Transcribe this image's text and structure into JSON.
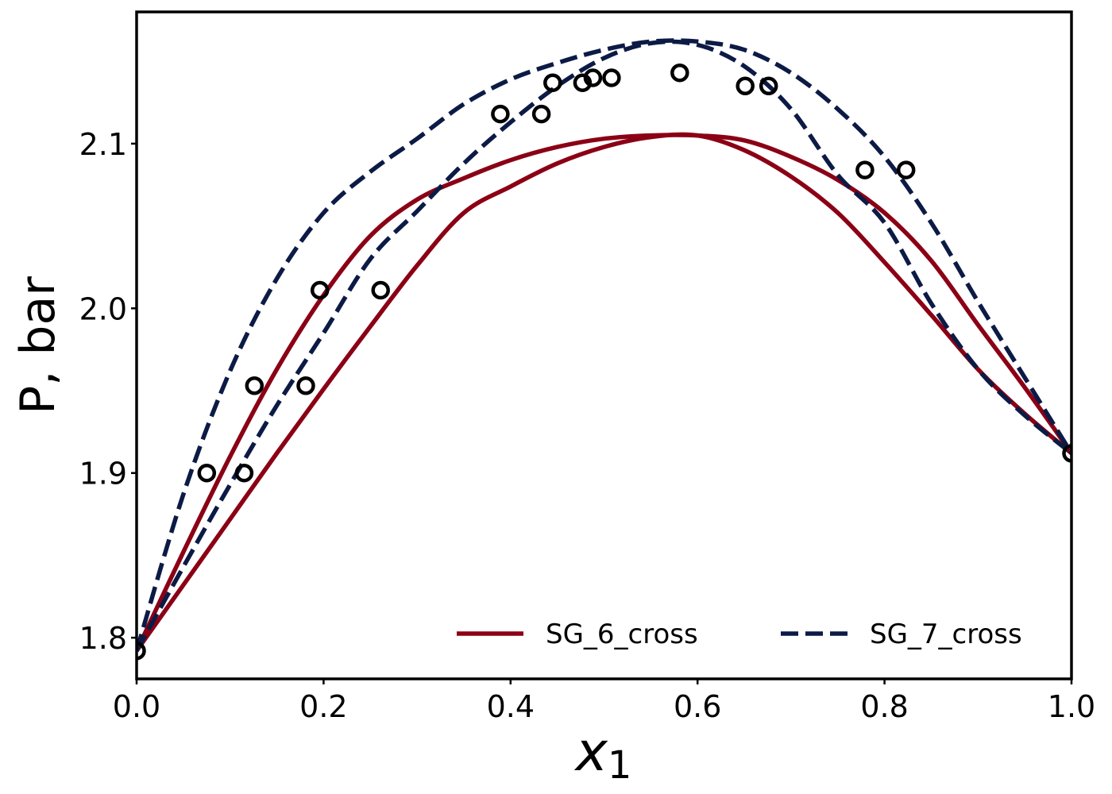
{
  "chart_data": {
    "type": "line",
    "title": "",
    "xlabel": "x",
    "xlabel_subscript": "1",
    "ylabel": "P, bar",
    "xlim": [
      0.0,
      1.0
    ],
    "ylim": [
      1.775,
      2.18
    ],
    "xticks": [
      0.0,
      0.2,
      0.4,
      0.6,
      0.8,
      1.0
    ],
    "xtick_labels": [
      "0.0",
      "0.2",
      "0.4",
      "0.6",
      "0.8",
      "1.0"
    ],
    "yticks": [
      1.8,
      1.9,
      2.0,
      2.1
    ],
    "ytick_labels": [
      "1.8",
      "1.9",
      "2.0",
      "2.1"
    ],
    "grid": false,
    "legend_position": "lower-right",
    "series": [
      {
        "name": "SG_6_cross",
        "style": "solid",
        "color": "#8b0015",
        "curves": [
          {
            "role": "bubble",
            "x": [
              0.0,
              0.05,
              0.1,
              0.15,
              0.2,
              0.25,
              0.3,
              0.35,
              0.4,
              0.45,
              0.5,
              0.55,
              0.6,
              0.65,
              0.7,
              0.75,
              0.8,
              0.85,
              0.9,
              0.95,
              1.0
            ],
            "y": [
              1.792,
              1.852,
              1.91,
              1.963,
              2.008,
              2.044,
              2.066,
              2.079,
              2.09,
              2.098,
              2.103,
              2.105,
              2.105,
              2.102,
              2.092,
              2.078,
              2.058,
              2.029,
              1.99,
              1.952,
              1.912
            ]
          },
          {
            "role": "dew",
            "x": [
              0.0,
              0.05,
              0.1,
              0.15,
              0.2,
              0.25,
              0.3,
              0.35,
              0.4,
              0.45,
              0.5,
              0.55,
              0.6,
              0.65,
              0.7,
              0.75,
              0.8,
              0.85,
              0.9,
              0.95,
              1.0
            ],
            "y": [
              1.792,
              1.832,
              1.872,
              1.912,
              1.951,
              1.989,
              2.026,
              2.058,
              2.074,
              2.088,
              2.098,
              2.104,
              2.105,
              2.096,
              2.08,
              2.058,
              2.028,
              1.996,
              1.963,
              1.936,
              1.912
            ]
          }
        ]
      },
      {
        "name": "SG_7_cross",
        "style": "dashed",
        "color": "#0c1b45",
        "curves": [
          {
            "role": "bubble",
            "x": [
              0.0,
              0.05,
              0.1,
              0.15,
              0.2,
              0.25,
              0.3,
              0.35,
              0.4,
              0.45,
              0.5,
              0.55,
              0.6,
              0.65,
              0.7,
              0.75,
              0.8,
              0.85,
              0.9,
              0.95,
              1.0
            ],
            "y": [
              1.792,
              1.887,
              1.962,
              2.018,
              2.058,
              2.083,
              2.103,
              2.124,
              2.139,
              2.149,
              2.157,
              2.162,
              2.162,
              2.157,
              2.143,
              2.121,
              2.092,
              2.052,
              2.004,
              1.958,
              1.912
            ]
          },
          {
            "role": "dew",
            "x": [
              0.0,
              0.05,
              0.1,
              0.15,
              0.2,
              0.25,
              0.3,
              0.35,
              0.4,
              0.45,
              0.5,
              0.55,
              0.6,
              0.65,
              0.7,
              0.75,
              0.8,
              0.85,
              0.9,
              0.95,
              1.0
            ],
            "y": [
              1.792,
              1.843,
              1.893,
              1.941,
              1.985,
              2.03,
              2.059,
              2.088,
              2.113,
              2.135,
              2.152,
              2.161,
              2.16,
              2.147,
              2.121,
              2.081,
              2.052,
              2.003,
              1.963,
              1.935,
              1.912
            ]
          }
        ]
      }
    ],
    "experimental_points": {
      "marker": "open-circle",
      "color": "#000000",
      "x": [
        0.0,
        0.075,
        0.115,
        0.126,
        0.181,
        0.196,
        0.261,
        0.389,
        0.433,
        0.445,
        0.477,
        0.488,
        0.508,
        0.581,
        0.651,
        0.676,
        0.779,
        0.823,
        1.0
      ],
      "y": [
        1.792,
        1.9,
        1.9,
        1.953,
        1.953,
        2.011,
        2.011,
        2.118,
        2.118,
        2.137,
        2.137,
        2.14,
        2.14,
        2.143,
        2.135,
        2.135,
        2.084,
        2.084,
        1.912
      ]
    }
  }
}
